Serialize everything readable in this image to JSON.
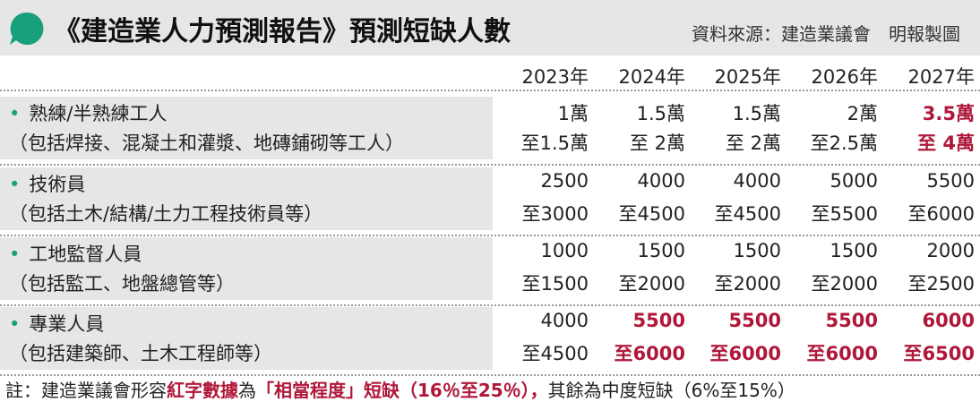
{
  "header": {
    "title": "《建造業人力預測報告》預測短缺人數",
    "source": "資料來源：建造業議會　明報製圖"
  },
  "table": {
    "columns": [
      "2023年",
      "2024年",
      "2025年",
      "2026年",
      "2027年"
    ],
    "rows": [
      {
        "label": "熟練/半熟練工人",
        "sublabel": "（包括焊接、混凝土和灌漿、地磚鋪砌等工人）",
        "cells": [
          {
            "from": "1萬",
            "to": "至1.5萬",
            "red": false
          },
          {
            "from": "1.5萬",
            "to": "至 2萬",
            "red": false
          },
          {
            "from": "1.5萬",
            "to": "至 2萬",
            "red": false
          },
          {
            "from": "2萬",
            "to": "至2.5萬",
            "red": false
          },
          {
            "from": "3.5萬",
            "to": "至 4萬",
            "red": true
          }
        ]
      },
      {
        "label": "技術員",
        "sublabel": "（包括土木/結構/土力工程技術員等）",
        "cells": [
          {
            "from": "2500",
            "to": "至3000",
            "red": false
          },
          {
            "from": "4000",
            "to": "至4500",
            "red": false
          },
          {
            "from": "4000",
            "to": "至4500",
            "red": false
          },
          {
            "from": "5000",
            "to": "至5500",
            "red": false
          },
          {
            "from": "5500",
            "to": "至6000",
            "red": false
          }
        ]
      },
      {
        "label": "工地監督人員",
        "sublabel": "（包括監工、地盤總管等）",
        "cells": [
          {
            "from": "1000",
            "to": "至1500",
            "red": false
          },
          {
            "from": "1500",
            "to": "至2000",
            "red": false
          },
          {
            "from": "1500",
            "to": "至2000",
            "red": false
          },
          {
            "from": "1500",
            "to": "至2000",
            "red": false
          },
          {
            "from": "2000",
            "to": "至2500",
            "red": false
          }
        ]
      },
      {
        "label": "專業人員",
        "sublabel": "（包括建築師、土木工程師等）",
        "cells": [
          {
            "from": "4000",
            "to": "至4500",
            "red": false
          },
          {
            "from": "5500",
            "to": "至6000",
            "red": true
          },
          {
            "from": "5500",
            "to": "至6000",
            "red": true
          },
          {
            "from": "5500",
            "to": "至6000",
            "red": true
          },
          {
            "from": "6000",
            "to": "至6500",
            "red": true
          }
        ]
      }
    ]
  },
  "note": [
    {
      "text": "註：建造業議會形容",
      "red": false
    },
    {
      "text": "紅字數據",
      "red": true
    },
    {
      "text": "為",
      "red": false
    },
    {
      "text": "「相當程度」短缺（16％至25％），",
      "red": true
    },
    {
      "text": "其餘為中度短缺（6%至15%）",
      "red": false
    }
  ]
}
